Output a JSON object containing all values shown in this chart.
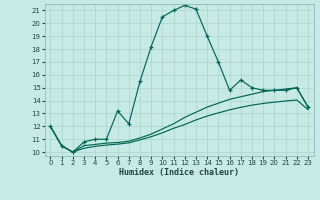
{
  "xlabel": "Humidex (Indice chaleur)",
  "ylabel": "",
  "bg_color": "#c8eae4",
  "grid_color": "#b0d8d0",
  "line_color": "#006655",
  "xlim": [
    -0.5,
    23.5
  ],
  "ylim": [
    9.7,
    21.5
  ],
  "xticks": [
    0,
    1,
    2,
    3,
    4,
    5,
    6,
    7,
    8,
    9,
    10,
    11,
    12,
    13,
    14,
    15,
    16,
    17,
    18,
    19,
    20,
    21,
    22,
    23
  ],
  "yticks": [
    10,
    11,
    12,
    13,
    14,
    15,
    16,
    17,
    18,
    19,
    20,
    21
  ],
  "line1_x": [
    0,
    1,
    2,
    3,
    4,
    5,
    6,
    7,
    8,
    9,
    10,
    11,
    12,
    13,
    14,
    15,
    16,
    17,
    18,
    19,
    20,
    21,
    22,
    23
  ],
  "line1_y": [
    12.0,
    10.5,
    10.0,
    10.8,
    11.0,
    11.0,
    13.2,
    12.2,
    15.5,
    18.2,
    20.5,
    21.0,
    21.4,
    21.1,
    19.0,
    17.0,
    14.8,
    15.6,
    15.0,
    14.8,
    14.8,
    14.8,
    15.0,
    13.5
  ],
  "line2_x": [
    0,
    1,
    2,
    3,
    4,
    5,
    6,
    7,
    8,
    9,
    10,
    11,
    12,
    13,
    14,
    15,
    16,
    17,
    18,
    19,
    20,
    21,
    22,
    23
  ],
  "line2_y": [
    12.0,
    10.5,
    10.0,
    10.5,
    10.6,
    10.7,
    10.75,
    10.85,
    11.1,
    11.4,
    11.8,
    12.2,
    12.7,
    13.1,
    13.5,
    13.8,
    14.1,
    14.3,
    14.5,
    14.7,
    14.8,
    14.9,
    15.0,
    13.5
  ],
  "line3_x": [
    0,
    1,
    2,
    3,
    4,
    5,
    6,
    7,
    8,
    9,
    10,
    11,
    12,
    13,
    14,
    15,
    16,
    17,
    18,
    19,
    20,
    21,
    22,
    23
  ],
  "line3_y": [
    12.0,
    10.5,
    10.0,
    10.3,
    10.45,
    10.55,
    10.62,
    10.72,
    10.95,
    11.2,
    11.5,
    11.85,
    12.15,
    12.5,
    12.8,
    13.05,
    13.28,
    13.48,
    13.65,
    13.78,
    13.88,
    13.97,
    14.05,
    13.3
  ]
}
